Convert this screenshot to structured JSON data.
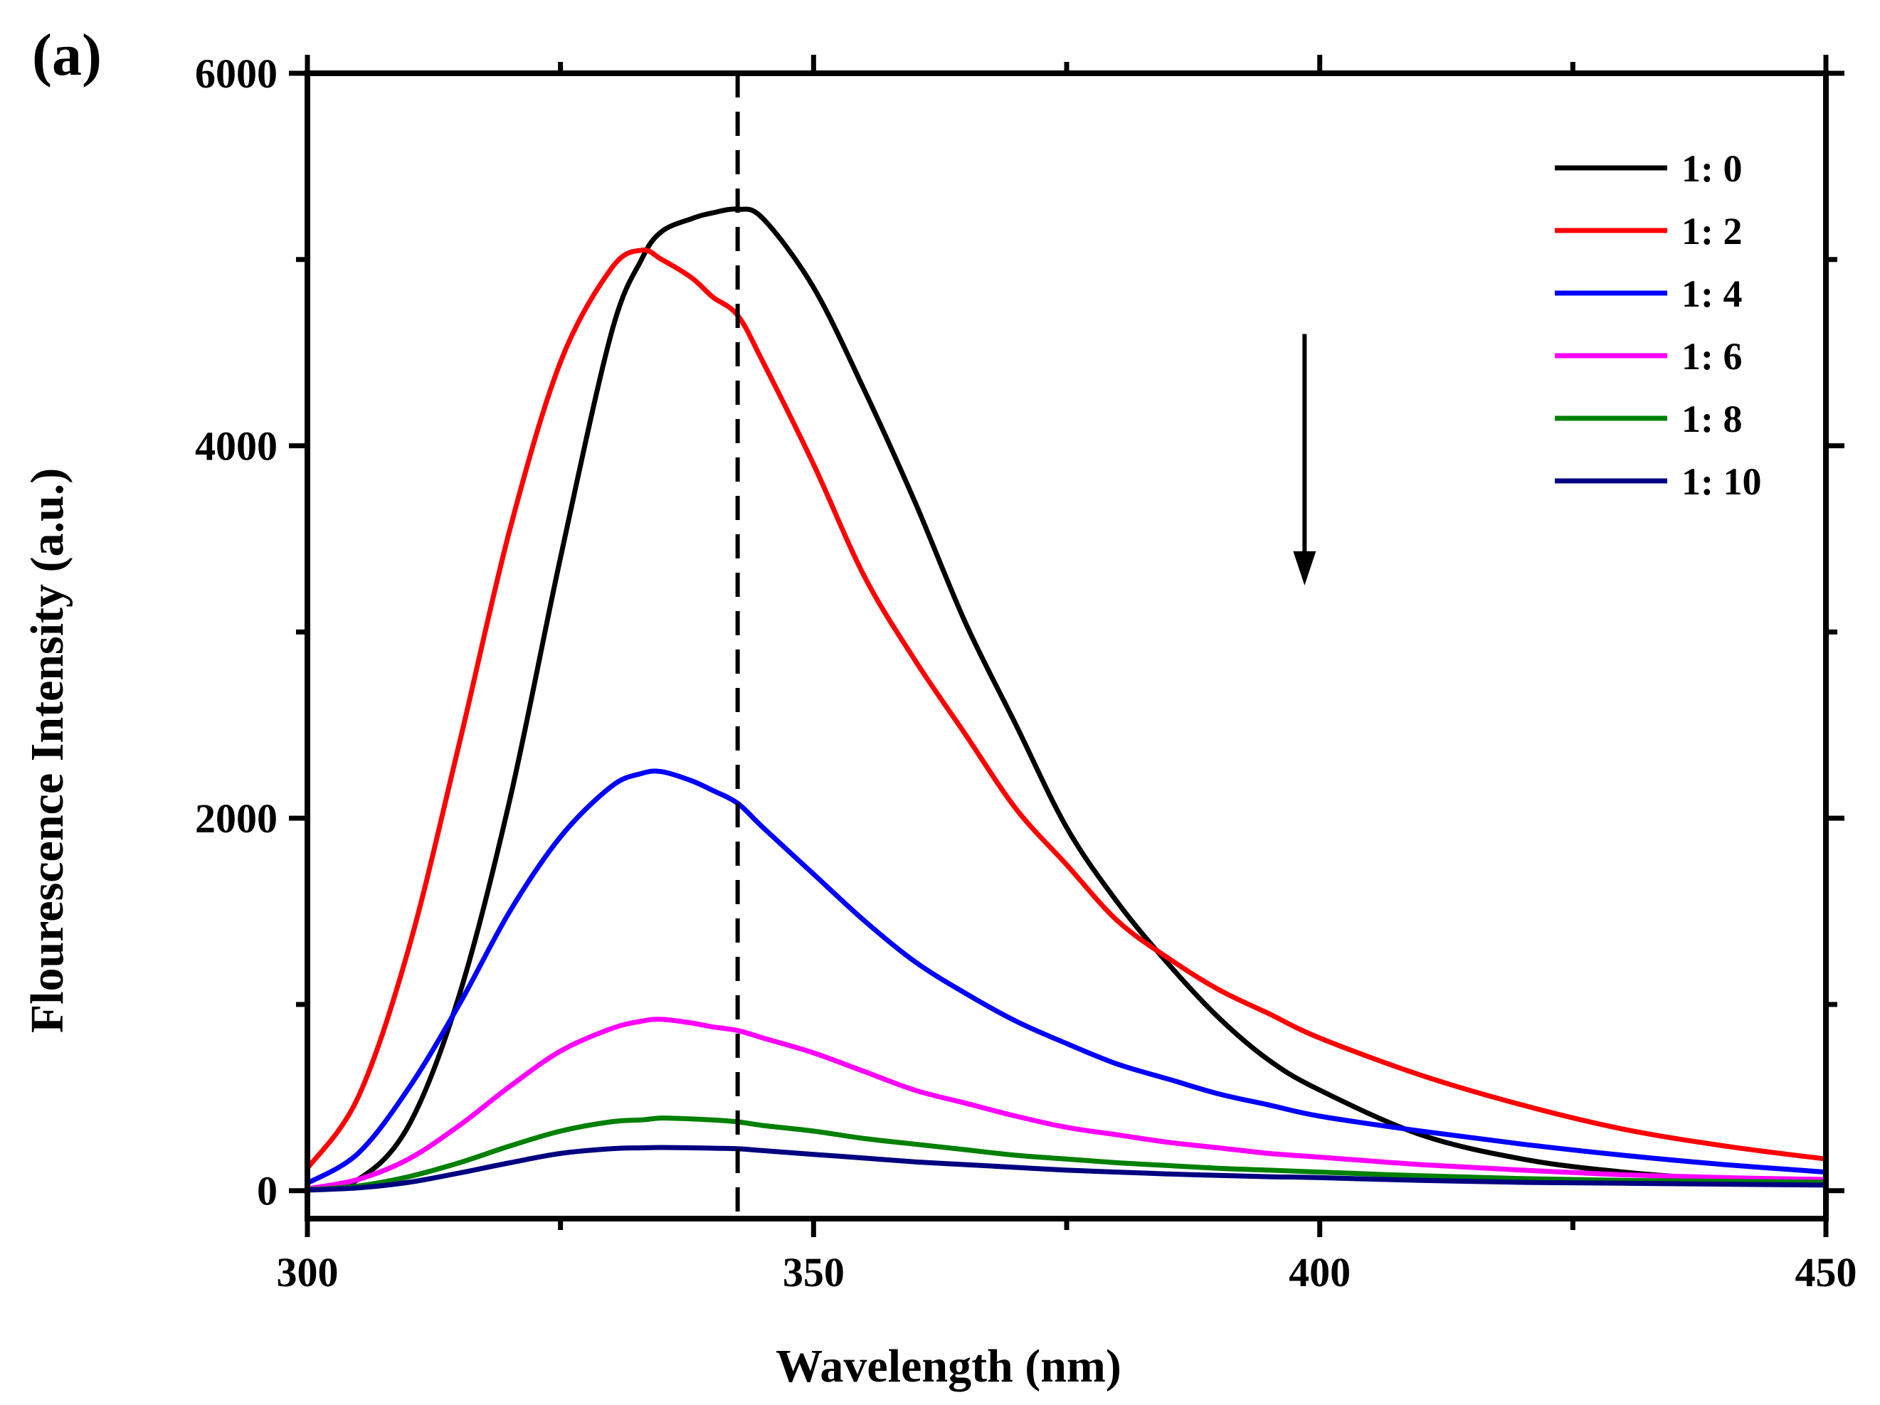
{
  "chart_data": {
    "type": "line",
    "panel_label": "(a)",
    "xlabel": "Wavelength (nm)",
    "ylabel": "Flourescence Intensity (a.u.)",
    "xlim": [
      300,
      450
    ],
    "ylim": [
      -150,
      6000
    ],
    "x_ticks": [
      300,
      350,
      400,
      450
    ],
    "x_minor_ticks": [
      325,
      375,
      425
    ],
    "y_ticks": [
      0,
      2000,
      4000,
      6000
    ],
    "y_minor_ticks": [
      1000,
      3000,
      5000
    ],
    "dashed_line_x": 342.5,
    "arrow": {
      "x": 398.5,
      "y_start": 4600,
      "y_end": 3250,
      "direction": "down"
    },
    "legend_position": "top-right",
    "x": [
      300,
      305,
      310,
      315,
      320,
      325,
      330,
      333,
      335,
      338,
      340,
      342.5,
      345,
      350,
      355,
      360,
      365,
      370,
      375,
      380,
      385,
      390,
      395,
      400,
      410,
      420,
      430,
      440,
      450
    ],
    "series": [
      {
        "name": "1: 0",
        "color": "#000000",
        "values": [
          10,
          60,
          350,
          1050,
          2100,
          3400,
          4600,
          5000,
          5150,
          5220,
          5250,
          5270,
          5220,
          4850,
          4300,
          3700,
          3050,
          2500,
          1950,
          1550,
          1220,
          930,
          700,
          540,
          300,
          170,
          100,
          60,
          40
        ]
      },
      {
        "name": "1: 2",
        "color": "#ff0000",
        "values": [
          120,
          500,
          1300,
          2400,
          3550,
          4450,
          4950,
          5050,
          5000,
          4900,
          4800,
          4700,
          4450,
          3900,
          3300,
          2850,
          2450,
          2050,
          1750,
          1450,
          1250,
          1080,
          950,
          820,
          620,
          460,
          330,
          240,
          170
        ]
      },
      {
        "name": "1: 4",
        "color": "#0000ff",
        "values": [
          40,
          200,
          550,
          1000,
          1500,
          1900,
          2170,
          2240,
          2250,
          2200,
          2150,
          2080,
          1950,
          1700,
          1450,
          1230,
          1060,
          910,
          790,
          680,
          600,
          520,
          460,
          400,
          320,
          250,
          190,
          140,
          100
        ]
      },
      {
        "name": "1: 6",
        "color": "#ff00ff",
        "values": [
          10,
          60,
          170,
          350,
          560,
          750,
          870,
          910,
          920,
          900,
          880,
          860,
          820,
          740,
          640,
          540,
          470,
          400,
          340,
          300,
          260,
          230,
          200,
          180,
          140,
          110,
          85,
          70,
          60
        ]
      },
      {
        "name": "1: 8",
        "color": "#008000",
        "values": [
          5,
          25,
          75,
          150,
          240,
          320,
          370,
          380,
          390,
          385,
          380,
          370,
          350,
          320,
          280,
          250,
          220,
          190,
          170,
          150,
          135,
          120,
          110,
          100,
          80,
          65,
          55,
          50,
          45
        ]
      },
      {
        "name": "1: 10",
        "color": "#000080",
        "values": [
          3,
          15,
          45,
          95,
          150,
          200,
          225,
          230,
          232,
          230,
          228,
          225,
          215,
          195,
          175,
          155,
          140,
          125,
          110,
          100,
          90,
          82,
          75,
          70,
          55,
          45,
          40,
          35,
          30
        ]
      }
    ]
  }
}
